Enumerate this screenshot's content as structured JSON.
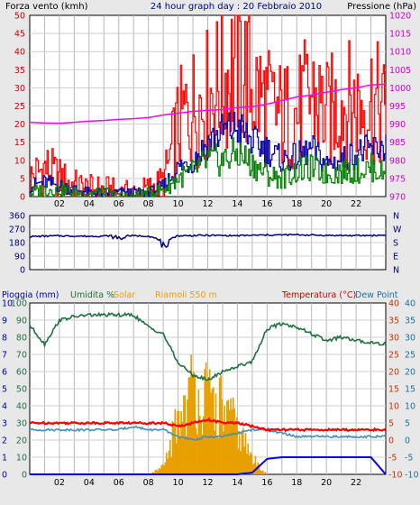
{
  "header": {
    "left_label": "Forza vento (kmh)",
    "center_label": "24 hour graph day : 20 Febbraio 2010",
    "right_label": "Pressione (hPa)"
  },
  "wind_axis": {
    "ticks": [
      "0",
      "5",
      "10",
      "15",
      "20",
      "25",
      "30",
      "35",
      "40",
      "45",
      "50"
    ]
  },
  "pressure_axis": {
    "ticks": [
      "970",
      "975",
      "980",
      "985",
      "990",
      "995",
      "1000",
      "1005",
      "1010",
      "1015",
      "1020"
    ]
  },
  "hour_ticks": [
    "02",
    "04",
    "06",
    "08",
    "10",
    "12",
    "14",
    "16",
    "18",
    "20",
    "22"
  ],
  "direction_panel": {
    "left_ticks": [
      "360",
      "270",
      "180",
      "90",
      "0"
    ],
    "right_ticks": [
      "N",
      "W",
      "S",
      "E",
      "N"
    ]
  },
  "bottom_header": {
    "rain_label": "Pioggia (mm)",
    "humidity_label": "Umidita %",
    "solar_label": "Solar",
    "riamoli_label": "Riamoli 550 m",
    "temp_label": "Temperatura (°C)",
    "dew_label": "Dew Point"
  },
  "bottom_axes": {
    "rain_ticks": [
      "10",
      "9",
      "8",
      "7",
      "6",
      "5",
      "4",
      "3",
      "2",
      "1",
      "0"
    ],
    "humidity_ticks": [
      "100",
      "90",
      "80",
      "70",
      "60",
      "50",
      "40",
      "30",
      "20",
      "10",
      "0"
    ],
    "temp_ticks": [
      "40",
      "35",
      "30",
      "25",
      "20",
      "15",
      "10",
      "5",
      "0",
      "-5",
      "-10"
    ],
    "dew_ticks": [
      "40",
      "35",
      "30",
      "25",
      "20",
      "15",
      "10",
      "5",
      "0",
      "-5",
      "-10"
    ]
  },
  "colors": {
    "wind_gust": "#ff0000",
    "wind_avg": "#0000aa",
    "wind_min": "#008000",
    "pressure": "#ff00ff",
    "direction": "#000080",
    "humidity": "#207040",
    "solar": "#e8a000",
    "temperature": "#ff0000",
    "dew_point": "#4090c0",
    "rain": "#0000ff"
  },
  "chart_data": [
    {
      "type": "line",
      "title": "24 hour graph day : 20 Febbraio 2010",
      "xlabel": "",
      "ylabel": "Forza vento (kmh)",
      "y2label": "Pressione (hPa)",
      "ylim": [
        0,
        50
      ],
      "y2lim": [
        970,
        1020
      ],
      "x": [
        0,
        1,
        2,
        3,
        4,
        5,
        6,
        7,
        8,
        9,
        10,
        11,
        12,
        13,
        14,
        15,
        16,
        17,
        18,
        19,
        20,
        21,
        22,
        23,
        24
      ],
      "series": [
        {
          "values": [
            5,
            8,
            5,
            3,
            2,
            2,
            1,
            1,
            2,
            4,
            20,
            25,
            28,
            32,
            38,
            30,
            25,
            22,
            23,
            28,
            22,
            26,
            25,
            27,
            22
          ]
        },
        {
          "values": [
            3,
            4,
            3,
            2,
            1,
            1,
            1,
            1,
            1,
            3,
            8,
            10,
            15,
            18,
            19,
            15,
            13,
            10,
            11,
            13,
            9,
            10,
            12,
            13,
            14
          ]
        },
        {
          "values": [
            1,
            2,
            2,
            1,
            1,
            1,
            0,
            0,
            1,
            2,
            5,
            7,
            10,
            10,
            12,
            9,
            6,
            5,
            7,
            8,
            6,
            7,
            7,
            8,
            6
          ]
        },
        {
          "axis": "y2",
          "values": [
            990.5,
            990.3,
            990.2,
            990.5,
            990.8,
            991.0,
            991.3,
            991.5,
            991.8,
            992.5,
            993.0,
            993.5,
            993.8,
            994.0,
            994.5,
            994.8,
            995.5,
            996.5,
            997.5,
            998.0,
            998.8,
            999.5,
            1000.0,
            1000.8,
            1001.0
          ]
        }
      ]
    },
    {
      "type": "line",
      "title": "",
      "ylim": [
        0,
        360
      ],
      "x": [
        0,
        2,
        4,
        6,
        8,
        9,
        10,
        12,
        14,
        16,
        18,
        20,
        22,
        24
      ],
      "series": [
        {
          "values": [
            220,
            225,
            222,
            226,
            224,
            190,
            225,
            228,
            226,
            230,
            232,
            228,
            226,
            229
          ]
        }
      ]
    },
    {
      "type": "line",
      "title": "",
      "x": [
        0,
        1,
        2,
        3,
        4,
        5,
        6,
        7,
        8,
        9,
        10,
        11,
        12,
        13,
        14,
        15,
        16,
        17,
        18,
        19,
        20,
        21,
        22,
        23,
        24
      ],
      "series": [
        {
          "axis": "humidity",
          "ylim": [
            0,
            100
          ],
          "values": [
            87,
            76,
            90,
            92,
            93,
            93,
            93,
            93,
            86,
            82,
            65,
            58,
            55,
            60,
            63,
            66,
            85,
            88,
            86,
            82,
            78,
            80,
            78,
            77,
            76
          ]
        },
        {
          "axis": "solar",
          "ylim": [
            0,
            1000
          ],
          "values": [
            0,
            0,
            0,
            0,
            0,
            0,
            0,
            0,
            0,
            50,
            400,
            600,
            500,
            450,
            300,
            100,
            0,
            0,
            0,
            0,
            0,
            0,
            0,
            0,
            0
          ]
        },
        {
          "axis": "temperature",
          "ylim": [
            -10,
            40
          ],
          "values": [
            5,
            5,
            5,
            5,
            5,
            5,
            5,
            5,
            5,
            5,
            4,
            5,
            6,
            5,
            5,
            4,
            3,
            3,
            3,
            3,
            3,
            3,
            3,
            3,
            3
          ]
        },
        {
          "axis": "dew_point",
          "ylim": [
            -10,
            40
          ],
          "values": [
            3,
            3,
            3,
            3,
            3,
            3,
            3,
            4,
            3,
            3,
            1,
            0,
            1,
            1,
            2,
            3,
            3,
            2,
            1,
            1,
            1,
            1,
            1,
            1,
            1
          ]
        },
        {
          "axis": "rain",
          "ylim": [
            0,
            10
          ],
          "values": [
            0,
            0,
            0,
            0,
            0,
            0,
            0,
            0,
            0,
            0,
            0,
            0,
            0,
            0,
            0,
            0.1,
            0.9,
            1.0,
            1.0,
            1.0,
            1.0,
            1.0,
            1.0,
            1.0,
            0
          ]
        }
      ]
    }
  ]
}
